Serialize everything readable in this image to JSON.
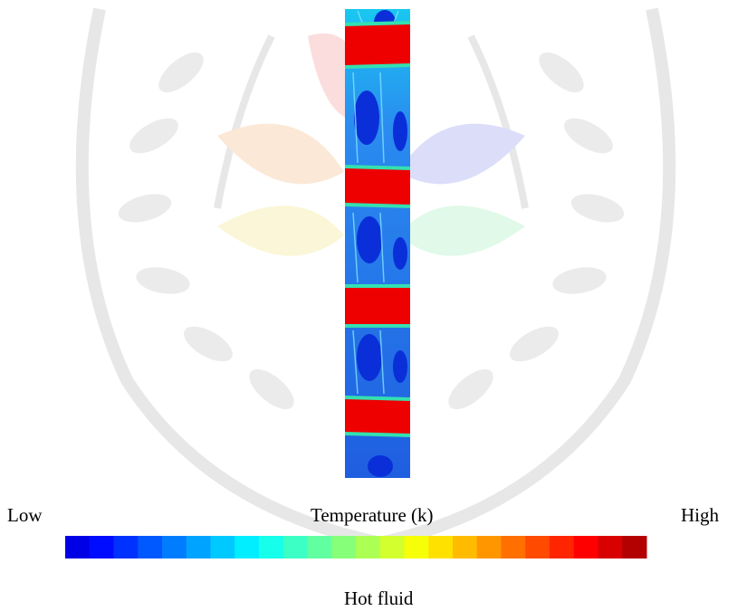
{
  "figure": {
    "low_label": "Low",
    "axis_label": "Temperature (k)",
    "high_label": "High",
    "caption": "Hot fluid"
  }
}
